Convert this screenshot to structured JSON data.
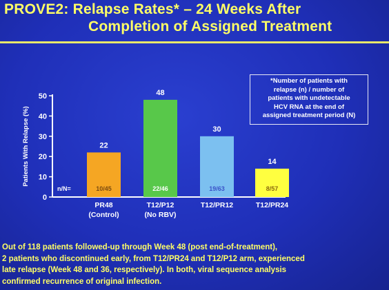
{
  "title": {
    "line1": "PROVE2: Relapse Rates* – 24 Weeks After",
    "line2": "Completion of Assigned Treatment"
  },
  "footnote": [
    "*Number of patients with",
    "relapse (n) / number of",
    "patients with undetectable",
    "HCV RNA at the end of",
    "assigned treatment period (N)"
  ],
  "colors": {
    "background": "#1f2fb8",
    "title": "#ffff66",
    "bar_pr48": "#f5a623",
    "bar_t12p12": "#58c84a",
    "bar_t12pr12": "#7cc0f0",
    "bar_t12pr24": "#ffff40"
  },
  "chart_data": {
    "type": "bar",
    "ylabel": "Patients With Relapse (%)",
    "ylim": [
      0,
      50
    ],
    "yticks": [
      0,
      10,
      20,
      30,
      40,
      50
    ],
    "nN_label": "n/N=",
    "categories": [
      {
        "name": "PR48",
        "sub": "(Control)"
      },
      {
        "name": "T12/P12",
        "sub": "(No RBV)"
      },
      {
        "name": "T12/PR12",
        "sub": ""
      },
      {
        "name": "T12/PR24",
        "sub": ""
      }
    ],
    "values": [
      22,
      48,
      30,
      14
    ],
    "value_labels": [
      "22",
      "48",
      "30",
      "14"
    ],
    "nN": [
      "10/45",
      "22/46",
      "19/63",
      "8/57"
    ]
  },
  "bottom_text": [
    "Out of 118 patients followed-up through Week 48 (post end-of-treatment),",
    "2 patients who discontinued early, from T12/PR24 and T12/P12 arm, experienced",
    "late relapse (Week 48 and 36, respectively). In both, viral sequence analysis",
    "confirmed recurrence of original infection."
  ]
}
